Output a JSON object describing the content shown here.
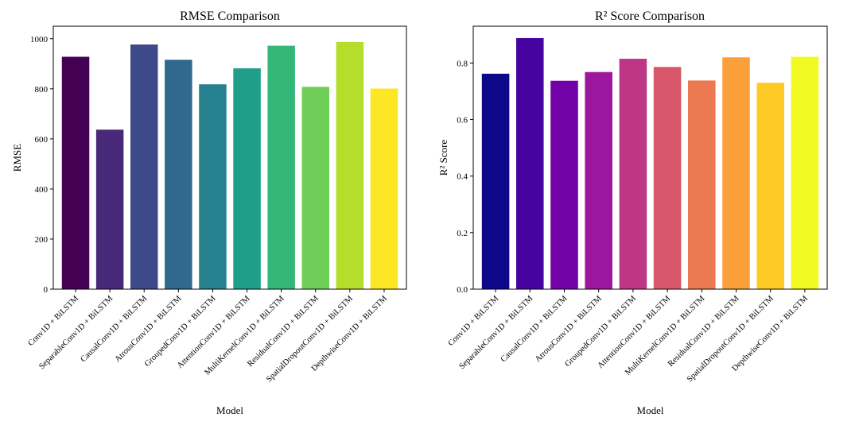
{
  "chart_data": [
    {
      "type": "bar",
      "title": "RMSE Comparison",
      "xlabel": "Model",
      "ylabel": "RMSE",
      "ylim": [
        0,
        1050
      ],
      "yticks": [
        0,
        200,
        400,
        600,
        800,
        1000
      ],
      "categories": [
        "Conv1D + BiLSTM",
        "SeparableConv1D + BiLSTM",
        "CausalConv1D + BiLSTM",
        "AtrousConv1D + BiLSTM",
        "GroupedConv1D + BiLSTM",
        "AttentionConv1D + BiLSTM",
        "MultiKernelConv1D + BiLSTM",
        "ResidualConv1D + BiLSTM",
        "SpatialDropoutConv1D + BiLSTM",
        "DepthwiseConv1D + BiLSTM"
      ],
      "values": [
        928,
        637,
        977,
        916,
        818,
        882,
        972,
        808,
        987,
        801
      ],
      "colors": [
        "#440154",
        "#482878",
        "#3e4989",
        "#31688e",
        "#26828e",
        "#1f9e89",
        "#35b779",
        "#6ece58",
        "#b5de2b",
        "#fde725"
      ]
    },
    {
      "type": "bar",
      "title": "R² Score Comparison",
      "xlabel": "Model",
      "ylabel": "R² Score",
      "ylim": [
        0,
        0.93
      ],
      "yticks": [
        "0.0",
        "0.2",
        "0.4",
        "0.6",
        "0.8"
      ],
      "categories": [
        "Conv1D + BiLSTM",
        "SeparableConv1D + BiLSTM",
        "CausalConv1D + BiLSTM",
        "AtrousConv1D + BiLSTM",
        "GroupedConv1D + BiLSTM",
        "AttentionConv1D + BiLSTM",
        "MultiKernelConv1D + BiLSTM",
        "ResidualConv1D + BiLSTM",
        "SpatialDropoutConv1D + BiLSTM",
        "DepthwiseConv1D + BiLSTM"
      ],
      "values": [
        0.762,
        0.888,
        0.737,
        0.768,
        0.815,
        0.786,
        0.738,
        0.82,
        0.73,
        0.822
      ],
      "colors": [
        "#0d0887",
        "#46039f",
        "#7201a8",
        "#9c179e",
        "#bd3786",
        "#d8576b",
        "#ed7953",
        "#fb9f3a",
        "#fdca26",
        "#f0f921"
      ]
    }
  ]
}
